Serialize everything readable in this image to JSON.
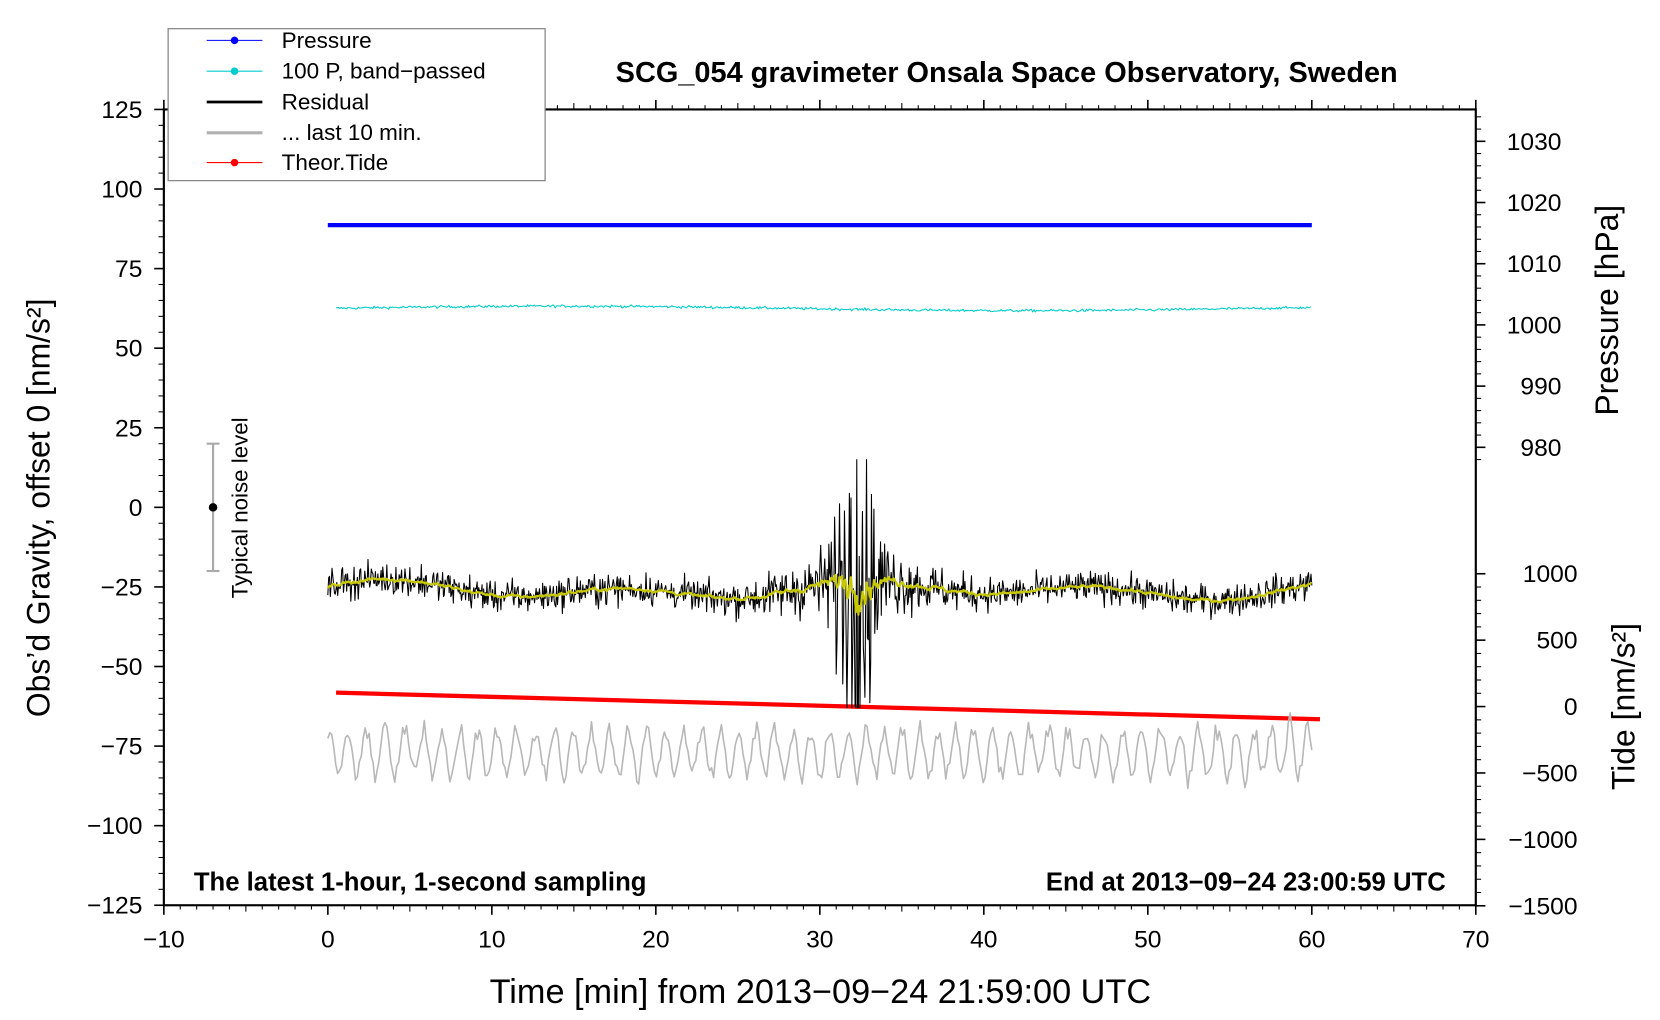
{
  "chart_data": {
    "type": "line",
    "title": "SCG_054 gravimeter Onsala Space Observatory, Sweden",
    "xlabel": "Time [min] from 2013−09−24 21:59:00 UTC",
    "ylabel_left": "Obs’d Gravity, offset 0 [nm/s²]",
    "ylabel_right_pressure": "Pressure [hPa]",
    "ylabel_right_tide": "Tide [nm/s²]",
    "xlim": [
      -10,
      70
    ],
    "ylim_left": [
      -125,
      125
    ],
    "pressure_axis_range": [
      980,
      1030
    ],
    "tide_axis_range": [
      -1500,
      1000
    ],
    "x_ticks": [
      "−10",
      "0",
      "10",
      "20",
      "30",
      "40",
      "50",
      "60",
      "70"
    ],
    "y_ticks_left": [
      "125",
      "100",
      "75",
      "50",
      "25",
      "0",
      "−25",
      "−50",
      "−75",
      "−100",
      "−125"
    ],
    "y_ticks_pressure": [
      "1030",
      "1020",
      "1010",
      "1000",
      "990",
      "980"
    ],
    "y_ticks_tide": [
      "1000",
      "500",
      "0",
      "−500",
      "−1000",
      "−1500"
    ],
    "annotation_left": "The latest 1-hour, 1-second sampling",
    "annotation_right": "End at 2013−09−24 23:00:59 UTC",
    "noise_label": "Typical noise level",
    "noise_bar": {
      "x": -7,
      "center": 0,
      "half_range": 20
    },
    "legend": {
      "placement": "top-left",
      "entries": [
        {
          "label": "Pressure",
          "color": "#0000ff"
        },
        {
          "label": "100 P, band−passed",
          "color": "#00cccc"
        },
        {
          "label": "Residual",
          "color": "#000000"
        },
        {
          "label": "... last 10 min.",
          "color": "#b0b0b0"
        },
        {
          "label": "Theor.Tide",
          "color": "#ff0000"
        }
      ]
    },
    "series": [
      {
        "name": "Pressure",
        "axis": "pressure_hPa",
        "x_range": [
          0,
          60
        ],
        "values_start": 1016.3,
        "values_end": 1016.3,
        "color": "#0000ff"
      },
      {
        "name": "100 P, band-passed",
        "axis": "left",
        "x_range": [
          0.5,
          60
        ],
        "mean": 62.5,
        "noise_amplitude": 0.6,
        "color": "#00cccc"
      },
      {
        "name": "Residual",
        "axis": "left",
        "x_range": [
          0,
          60
        ],
        "mean": -26,
        "noise_amplitude": 5,
        "burst": {
          "center_min": 32.2,
          "peak": 15,
          "trough": -62
        },
        "color": "#000000"
      },
      {
        "name": "Residual smoothed",
        "axis": "left",
        "x_range": [
          0,
          60
        ],
        "mean": -26,
        "color": "#c8c800"
      },
      {
        "name": "... last 10 min.",
        "axis": "left",
        "x_range": [
          0,
          60
        ],
        "mean": -77,
        "noise_amplitude": 8,
        "color": "#b8b8b8"
      },
      {
        "name": "Theor.Tide",
        "axis": "tide_nm_s2",
        "x_range": [
          0.5,
          60.5
        ],
        "values_start": 105,
        "values_end": -95,
        "color": "#ff0000"
      }
    ]
  }
}
